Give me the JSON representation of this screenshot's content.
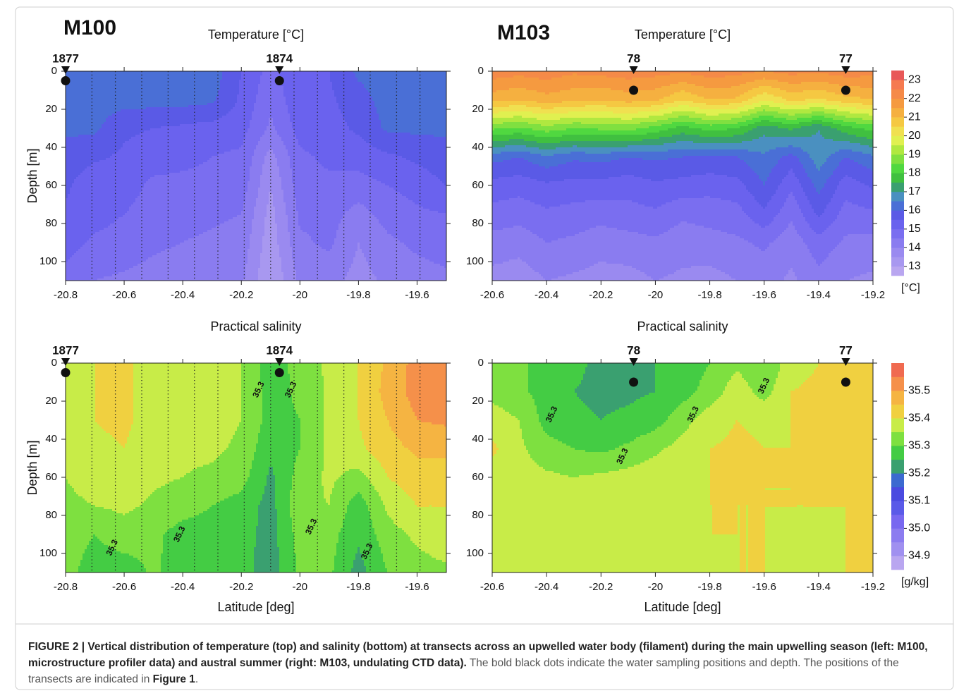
{
  "panel_labels": [
    "M100",
    "M103"
  ],
  "chart_data": [
    {
      "type": "contour",
      "title": "Temperature [°C]",
      "ylabel": "Depth [m]",
      "xlim": [
        -20.8,
        -19.5
      ],
      "xticks": [
        -20.8,
        -20.6,
        -20.4,
        -20.2,
        -20,
        -19.8,
        -19.6
      ],
      "ylim": [
        0,
        110
      ],
      "yticks": [
        0,
        20,
        40,
        60,
        80,
        100
      ],
      "stations": [
        {
          "label": "1877",
          "x": -20.8,
          "depth": 5
        },
        {
          "label": "1874",
          "x": -20.07,
          "depth": 5
        }
      ],
      "profiles": [
        -20.71,
        -20.63,
        -20.54,
        -20.45,
        -20.36,
        -20.28,
        -20.19,
        -20.1,
        -20.02,
        -19.94,
        -19.85,
        -19.76,
        -19.67,
        -19.59
      ],
      "field": {
        "x": [
          -20.8,
          -20.7,
          -20.6,
          -20.5,
          -20.4,
          -20.3,
          -20.2,
          -20.1,
          -20.0,
          -19.9,
          -19.8,
          -19.7,
          -19.6,
          -19.5
        ],
        "depth": [
          0,
          15,
          30,
          45,
          60,
          75,
          90,
          110
        ],
        "values": [
          [
            16.3,
            16.3,
            16.3,
            16.3,
            16.3,
            16.3,
            15.5,
            14.8,
            15.5,
            15.5,
            16.1,
            16.3,
            16.3,
            16.3
          ],
          [
            16.2,
            16.2,
            16.2,
            16.2,
            16.2,
            16.1,
            15.4,
            14.6,
            15.4,
            15.4,
            15.8,
            16.2,
            16.2,
            16.2
          ],
          [
            16.1,
            16.1,
            15.6,
            15.5,
            15.4,
            15.3,
            15.2,
            14.4,
            15.2,
            15.3,
            15.6,
            16.1,
            16.1,
            16.1
          ],
          [
            15.8,
            15.6,
            15.4,
            15.2,
            15.1,
            15.0,
            14.9,
            13.8,
            14.9,
            15.1,
            15.2,
            15.4,
            15.6,
            15.8
          ],
          [
            15.6,
            15.1,
            15.2,
            14.9,
            14.9,
            14.9,
            14.8,
            13.5,
            14.8,
            14.9,
            14.8,
            15.0,
            15.2,
            15.5
          ],
          [
            15.4,
            15.2,
            15.0,
            14.8,
            14.7,
            14.6,
            14.5,
            13.3,
            14.6,
            14.7,
            14.3,
            14.7,
            14.9,
            15.0
          ],
          [
            15.2,
            14.9,
            14.8,
            14.6,
            14.5,
            14.4,
            14.3,
            13.2,
            14.4,
            14.6,
            14.0,
            14.4,
            14.6,
            14.7
          ],
          [
            14.8,
            14.5,
            14.4,
            14.3,
            14.2,
            14.1,
            14.1,
            13.0,
            14.1,
            14.2,
            13.8,
            14.1,
            14.3,
            14.4
          ]
        ]
      },
      "bands": {
        "levels": [
          12.5,
          13,
          13.5,
          14,
          14.5,
          15,
          15.5,
          16,
          16.5,
          17,
          17.5,
          18,
          18.5,
          19,
          19.5,
          20,
          20.5,
          21,
          21.5,
          22,
          22.5,
          23,
          23.5
        ],
        "colors": [
          "#b9a6f0",
          "#a898f0",
          "#9a8af0",
          "#8a7cf0",
          "#7a6ef0",
          "#6a62ee",
          "#5a5ae6",
          "#4a6fd6",
          "#4a90c0",
          "#3aa070",
          "#40c040",
          "#50d840",
          "#80e040",
          "#b0e840",
          "#e0f050",
          "#f0e050",
          "#f5c842",
          "#f5b040",
          "#f59a40",
          "#f58a48",
          "#f57a50",
          "#e85858"
        ]
      }
    },
    {
      "type": "contour",
      "title": "Temperature [°C]",
      "xlim": [
        -20.6,
        -19.2
      ],
      "xticks": [
        -20.6,
        -20.4,
        -20.2,
        -20,
        -19.8,
        -19.6,
        -19.4,
        -19.2
      ],
      "ylim": [
        0,
        110
      ],
      "yticks": [
        0,
        20,
        40,
        60,
        80,
        100
      ],
      "stations": [
        {
          "label": "78",
          "x": -20.08,
          "depth": 10
        },
        {
          "label": "77",
          "x": -19.3,
          "depth": 10
        }
      ],
      "field": {
        "x": [
          -20.6,
          -20.5,
          -20.4,
          -20.3,
          -20.2,
          -20.1,
          -20.0,
          -19.9,
          -19.8,
          -19.7,
          -19.6,
          -19.5,
          -19.4,
          -19.3,
          -19.2
        ],
        "depth": [
          0,
          15,
          30,
          45,
          60,
          75,
          90,
          110
        ],
        "values": [
          [
            22.3,
            22.2,
            22.3,
            22.1,
            22.2,
            22.3,
            22.2,
            22.1,
            22.3,
            22.2,
            22.0,
            22.2,
            22.1,
            22.3,
            22.2
          ],
          [
            21.2,
            21.0,
            21.3,
            21.1,
            21.0,
            21.2,
            21.1,
            20.5,
            21.0,
            20.9,
            20.0,
            20.6,
            20.4,
            20.8,
            21.0
          ],
          [
            18.6,
            18.4,
            18.8,
            18.5,
            18.6,
            18.7,
            18.3,
            17.8,
            18.2,
            18.0,
            17.2,
            17.6,
            17.0,
            17.8,
            18.2
          ],
          [
            16.2,
            16.0,
            16.4,
            16.1,
            16.2,
            16.0,
            16.1,
            16.0,
            15.9,
            16.0,
            16.4,
            15.8,
            16.8,
            16.0,
            16.4
          ],
          [
            15.3,
            15.2,
            15.4,
            15.3,
            15.3,
            15.2,
            15.4,
            15.3,
            15.2,
            15.3,
            16.0,
            15.1,
            16.2,
            15.2,
            15.6
          ],
          [
            14.8,
            14.7,
            14.9,
            14.8,
            14.7,
            14.8,
            14.9,
            14.6,
            14.7,
            14.8,
            15.4,
            14.6,
            15.6,
            14.8,
            14.9
          ],
          [
            14.3,
            14.2,
            14.5,
            14.4,
            14.2,
            14.3,
            14.4,
            14.2,
            14.3,
            14.4,
            14.6,
            14.2,
            14.8,
            14.4,
            14.3
          ],
          [
            13.8,
            13.7,
            14.0,
            13.9,
            13.8,
            13.8,
            14.0,
            13.9,
            13.8,
            14.0,
            14.2,
            13.9,
            14.3,
            14.0,
            13.9
          ]
        ]
      },
      "bands": {
        "levels": [
          12.5,
          13,
          13.5,
          14,
          14.5,
          15,
          15.5,
          16,
          16.5,
          17,
          17.5,
          18,
          18.5,
          19,
          19.5,
          20,
          20.5,
          21,
          21.5,
          22,
          22.5,
          23,
          23.5
        ],
        "colors": [
          "#b9a6f0",
          "#a898f0",
          "#9a8af0",
          "#8a7cf0",
          "#7a6ef0",
          "#6a62ee",
          "#5a5ae6",
          "#4a6fd6",
          "#4a90c0",
          "#3aa070",
          "#40c040",
          "#50d840",
          "#80e040",
          "#b0e840",
          "#e0f050",
          "#f0e050",
          "#f5c842",
          "#f5b040",
          "#f59a40",
          "#f58a48",
          "#f57a50",
          "#e85858"
        ]
      },
      "colorbar": {
        "ticks": [
          13,
          14,
          15,
          16,
          17,
          18,
          19,
          20,
          21,
          22,
          23
        ],
        "unit": "[°C]"
      }
    },
    {
      "type": "contour",
      "title": "Practical salinity",
      "ylabel": "Depth [m]",
      "xlabel": "Latitude [deg]",
      "xlim": [
        -20.8,
        -19.5
      ],
      "xticks": [
        -20.8,
        -20.6,
        -20.4,
        -20.2,
        -20,
        -19.8,
        -19.6
      ],
      "ylim": [
        0,
        110
      ],
      "yticks": [
        0,
        20,
        40,
        60,
        80,
        100
      ],
      "stations": [
        {
          "label": "1877",
          "x": -20.8,
          "depth": 5
        },
        {
          "label": "1874",
          "x": -20.07,
          "depth": 5
        }
      ],
      "profiles": [
        -20.71,
        -20.63,
        -20.54,
        -20.45,
        -20.36,
        -20.28,
        -20.19,
        -20.1,
        -20.02,
        -19.94,
        -19.85,
        -19.76,
        -19.67,
        -19.59
      ],
      "contour_labels": [
        {
          "level": 35.3,
          "x": -20.64,
          "depth": 97
        },
        {
          "level": 35.3,
          "x": -20.41,
          "depth": 90
        },
        {
          "level": 35.3,
          "x": -20.14,
          "depth": 14
        },
        {
          "level": 35.3,
          "x": -20.03,
          "depth": 14
        },
        {
          "level": 35.3,
          "x": -19.96,
          "depth": 86
        },
        {
          "level": 35.3,
          "x": -19.77,
          "depth": 99
        }
      ],
      "field": {
        "x": [
          -20.8,
          -20.7,
          -20.6,
          -20.5,
          -20.4,
          -20.3,
          -20.2,
          -20.1,
          -20.0,
          -19.9,
          -19.8,
          -19.7,
          -19.6,
          -19.5
        ],
        "depth": [
          0,
          15,
          30,
          45,
          60,
          75,
          90,
          110
        ],
        "values": [
          [
            35.37,
            35.4,
            35.41,
            35.38,
            35.37,
            35.37,
            35.35,
            35.27,
            35.32,
            35.36,
            35.4,
            35.46,
            35.52,
            35.52
          ],
          [
            35.37,
            35.4,
            35.41,
            35.38,
            35.37,
            35.37,
            35.35,
            35.28,
            35.31,
            35.36,
            35.4,
            35.47,
            35.52,
            35.52
          ],
          [
            35.37,
            35.4,
            35.41,
            35.38,
            35.37,
            35.37,
            35.35,
            35.28,
            35.3,
            35.36,
            35.4,
            35.45,
            35.5,
            35.51
          ],
          [
            35.36,
            35.39,
            35.4,
            35.37,
            35.36,
            35.36,
            35.34,
            35.26,
            35.3,
            35.36,
            35.39,
            35.43,
            35.46,
            35.46
          ],
          [
            35.35,
            35.37,
            35.38,
            35.36,
            35.35,
            35.34,
            35.32,
            35.24,
            35.32,
            35.36,
            35.33,
            35.4,
            35.43,
            35.43
          ],
          [
            35.34,
            35.35,
            35.36,
            35.34,
            35.32,
            35.3,
            35.28,
            35.23,
            35.34,
            35.35,
            35.27,
            35.36,
            35.4,
            35.4
          ],
          [
            35.33,
            35.3,
            35.33,
            35.31,
            35.28,
            35.28,
            35.27,
            35.23,
            35.32,
            35.32,
            35.26,
            35.33,
            35.36,
            35.38
          ],
          [
            35.32,
            35.27,
            35.27,
            35.31,
            35.27,
            35.27,
            35.27,
            35.22,
            35.31,
            35.31,
            35.23,
            35.3,
            35.33,
            35.34
          ]
        ]
      },
      "bands": {
        "levels": [
          34.85,
          34.9,
          34.95,
          35,
          35.05,
          35.1,
          35.15,
          35.2,
          35.25,
          35.3,
          35.35,
          35.4,
          35.45,
          35.5,
          35.55,
          35.6
        ],
        "colors": [
          "#b9a6f0",
          "#a090f0",
          "#8c7cf0",
          "#7868f0",
          "#5a5ae8",
          "#4a4ae0",
          "#3c6ad0",
          "#3aa070",
          "#44cc44",
          "#7ee040",
          "#c8ec48",
          "#f0d040",
          "#f5b442",
          "#f5904a",
          "#f06a50"
        ]
      }
    },
    {
      "type": "contour",
      "title": "Practical salinity",
      "xlabel": "Latitude [deg]",
      "xlim": [
        -20.6,
        -19.2
      ],
      "xticks": [
        -20.6,
        -20.4,
        -20.2,
        -20,
        -19.8,
        -19.6,
        -19.4,
        -19.2
      ],
      "ylim": [
        0,
        110
      ],
      "yticks": [
        0,
        20,
        40,
        60,
        80,
        100
      ],
      "stations": [
        {
          "label": "78",
          "x": -20.08,
          "depth": 10
        },
        {
          "label": "77",
          "x": -19.3,
          "depth": 10
        }
      ],
      "contour_labels": [
        {
          "level": 35.3,
          "x": -20.38,
          "depth": 27
        },
        {
          "level": 35.3,
          "x": -20.12,
          "depth": 49
        },
        {
          "level": 35.3,
          "x": -19.86,
          "depth": 27
        },
        {
          "level": 35.3,
          "x": -19.6,
          "depth": 12
        }
      ],
      "field": {
        "x": [
          -20.6,
          -20.5,
          -20.4,
          -20.3,
          -20.2,
          -20.1,
          -20.0,
          -19.9,
          -19.8,
          -19.7,
          -19.6,
          -19.5,
          -19.4,
          -19.3,
          -19.2
        ],
        "depth": [
          0,
          15,
          30,
          45,
          60,
          75,
          90,
          110
        ],
        "values": [
          [
            35.32,
            35.31,
            35.28,
            35.26,
            35.24,
            35.24,
            35.25,
            35.27,
            35.3,
            35.34,
            35.3,
            35.38,
            35.4,
            35.42,
            35.44
          ],
          [
            35.33,
            35.31,
            35.28,
            35.25,
            35.24,
            35.24,
            35.25,
            35.28,
            35.32,
            35.38,
            35.33,
            35.4,
            35.41,
            35.43,
            35.45
          ],
          [
            35.38,
            35.35,
            35.28,
            35.26,
            35.25,
            35.26,
            35.28,
            35.33,
            35.38,
            35.4,
            35.39,
            35.4,
            35.41,
            35.42,
            35.45
          ],
          [
            35.41,
            35.36,
            35.32,
            35.3,
            35.29,
            35.31,
            35.34,
            35.37,
            35.4,
            35.41,
            35.4,
            35.4,
            35.41,
            35.43,
            35.44
          ],
          [
            35.38,
            35.37,
            35.36,
            35.35,
            35.36,
            35.37,
            35.38,
            35.39,
            35.4,
            35.41,
            35.4,
            35.4,
            35.41,
            35.41,
            35.42
          ],
          [
            35.36,
            35.37,
            35.37,
            35.36,
            35.38,
            35.38,
            35.37,
            35.39,
            35.4,
            35.4,
            35.4,
            35.4,
            35.4,
            35.4,
            35.41
          ],
          [
            35.37,
            35.36,
            35.38,
            35.37,
            35.39,
            35.37,
            35.36,
            35.38,
            35.4,
            35.4,
            35.4,
            35.39,
            35.39,
            35.4,
            35.4
          ],
          [
            35.36,
            35.36,
            35.37,
            35.37,
            35.38,
            35.37,
            35.36,
            35.37,
            35.39,
            35.4,
            35.4,
            35.39,
            35.39,
            35.4,
            35.4
          ]
        ]
      },
      "bands": {
        "levels": [
          34.85,
          34.9,
          34.95,
          35,
          35.05,
          35.1,
          35.15,
          35.2,
          35.25,
          35.3,
          35.35,
          35.4,
          35.45,
          35.5,
          35.55,
          35.6
        ],
        "colors": [
          "#b9a6f0",
          "#a090f0",
          "#8c7cf0",
          "#7868f0",
          "#5a5ae8",
          "#4a4ae0",
          "#3c6ad0",
          "#3aa070",
          "#44cc44",
          "#7ee040",
          "#c8ec48",
          "#f0d040",
          "#f5b442",
          "#f5904a",
          "#f06a50"
        ]
      },
      "colorbar": {
        "ticks": [
          34.9,
          {
            "value": 35,
            "label": "35.0"
          },
          35.1,
          35.2,
          35.3,
          35.4,
          35.5
        ],
        "unit": "[g/kg]"
      }
    }
  ],
  "caption": {
    "label": "FIGURE 2 | Vertical distribution of temperature (top) and salinity (bottom) at transects across an upwelled water body (filament) during the main upwelling season (left: M100, microstructure profiler data) and austral summer (right: M103, undulating CTD data).",
    "text": " The bold black dots indicate the water sampling positions and depth. The positions of the transects are indicated in ",
    "ref": "Figure 1",
    "end": "."
  }
}
